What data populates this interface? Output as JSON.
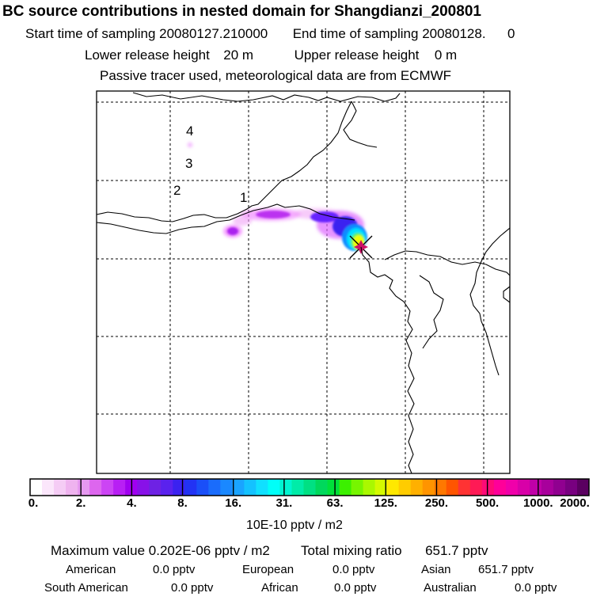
{
  "title": "BC  source contributions in nested domain for Shangdianzi_200801",
  "sampling": {
    "start_label": "Start time of sampling",
    "start_value": "20080127.210000",
    "end_label": "End time of sampling",
    "end_value": "20080128.",
    "end_suffix": "0"
  },
  "release": {
    "lower_label": "Lower release height",
    "lower_value": "20 m",
    "upper_label": "Upper release height",
    "upper_value": "0 m"
  },
  "tracer_note": "Passive tracer used, meteorological data are from ECMWF",
  "map": {
    "markers": [
      "1",
      "2",
      "3",
      "4"
    ],
    "plume_colors": [
      "#ff44ff",
      "#cc00ff",
      "#6600ff",
      "#0099ff",
      "#00ffff",
      "#ffff00",
      "#cc0066"
    ]
  },
  "colorbar": {
    "ticks": [
      "0.",
      "2.",
      "4.",
      "8.",
      "16.",
      "31.",
      "63.",
      "125.",
      "250.",
      "500.",
      "1000.",
      "2000."
    ],
    "units": "10E-10 pptv / m2",
    "colors": [
      "#ffffff",
      "#fbe6fb",
      "#f5ccf5",
      "#efb3ef",
      "#e699f0",
      "#dd66ee",
      "#cc44f4",
      "#b81ff4",
      "#a000f0",
      "#8811e8",
      "#6e22e4",
      "#5a22ee",
      "#3b22f0",
      "#2233f4",
      "#1a4ff8",
      "#1a6cfc",
      "#1a88ff",
      "#1aa4ff",
      "#14c2ff",
      "#10e0ff",
      "#00fff8",
      "#00f5d0",
      "#00eca8",
      "#00e083",
      "#00d85c",
      "#00e03a",
      "#3cf000",
      "#77f500",
      "#aaf800",
      "#d4fa00",
      "#ffe800",
      "#ffcc00",
      "#ffb000",
      "#ff9400",
      "#ff7800",
      "#ff5500",
      "#ff3333",
      "#ff1a55",
      "#ff0a77",
      "#ff0099",
      "#f000aa",
      "#d800a8",
      "#c000a8",
      "#a8009c",
      "#900090",
      "#780080",
      "#5a0060"
    ]
  },
  "stats": {
    "max_label": "Maximum value",
    "max_value": "0.202E-06 pptv / m2",
    "total_label": "Total mixing ratio",
    "total_value": "651.7 pptv",
    "regions": [
      {
        "name": "American",
        "value": "0.0 pptv"
      },
      {
        "name": "European",
        "value": "0.0 pptv"
      },
      {
        "name": "Asian",
        "value": "651.7 pptv"
      },
      {
        "name": "South American",
        "value": "0.0 pptv"
      },
      {
        "name": "African",
        "value": "0.0 pptv"
      },
      {
        "name": "Australian",
        "value": "0.0 pptv"
      }
    ]
  }
}
